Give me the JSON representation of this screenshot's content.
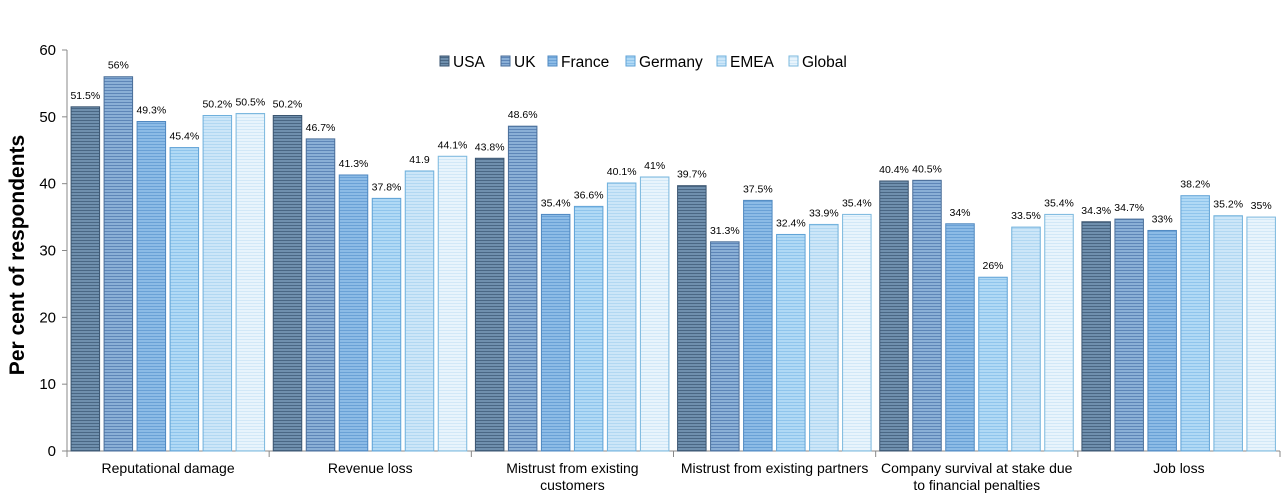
{
  "chart_data": {
    "type": "bar",
    "title": "",
    "xlabel": "",
    "ylabel": "Per cent of respondents",
    "ylim": [
      0,
      60
    ],
    "yticks": [
      "0",
      "10",
      "20",
      "30",
      "40",
      "50",
      "60"
    ],
    "grid": false,
    "legend_position": "top",
    "categories": [
      [
        "Reputational damage"
      ],
      [
        "Revenue loss"
      ],
      [
        "Mistrust from existing",
        "customers"
      ],
      [
        "Mistrust from existing partners"
      ],
      [
        "Company survival at stake due",
        "to financial penalties"
      ],
      [
        "Job loss"
      ]
    ],
    "series": [
      {
        "name": "USA",
        "color": "#6f8fad",
        "values": [
          51.5,
          50.2,
          43.8,
          39.7,
          40.4,
          34.3
        ],
        "labels": [
          "51.5%",
          "50.2%",
          "43.8%",
          "39.7%",
          "40.4%",
          "34.3%"
        ]
      },
      {
        "name": "UK",
        "color": "#7ba5d3",
        "values": [
          56,
          46.7,
          48.6,
          31.3,
          40.5,
          34.7
        ],
        "labels": [
          "56%",
          "46.7%",
          "48.6%",
          "31.3%",
          "40.5%",
          "34.7%"
        ]
      },
      {
        "name": "France",
        "color": "#82b4e3",
        "values": [
          49.3,
          41.3,
          35.4,
          37.5,
          34,
          33
        ],
        "labels": [
          "49.3%",
          "41.3%",
          "35.4%",
          "37.5%",
          "34%",
          "33%"
        ]
      },
      {
        "name": "Germany",
        "color": "#a7d4f4",
        "values": [
          45.4,
          37.8,
          36.6,
          32.4,
          26,
          38.2
        ],
        "labels": [
          "45.4%",
          "37.8%",
          "36.6%",
          "32.4%",
          "26%",
          "38.2%"
        ]
      },
      {
        "name": "EMEA",
        "color": "#c3e1f7",
        "values": [
          50.2,
          41.9,
          40.1,
          33.9,
          33.5,
          35.2
        ],
        "labels": [
          "50.2%",
          "41.9",
          "40.1%",
          "33.9%",
          "33.5%",
          "35.2%"
        ]
      },
      {
        "name": "Global",
        "color": "#e3f1fb",
        "values": [
          50.5,
          44.1,
          41,
          35.4,
          35.4,
          35
        ],
        "labels": [
          "50.5%",
          "44.1%",
          "41%",
          "35.4%",
          "35.4%",
          "35%"
        ]
      }
    ]
  }
}
